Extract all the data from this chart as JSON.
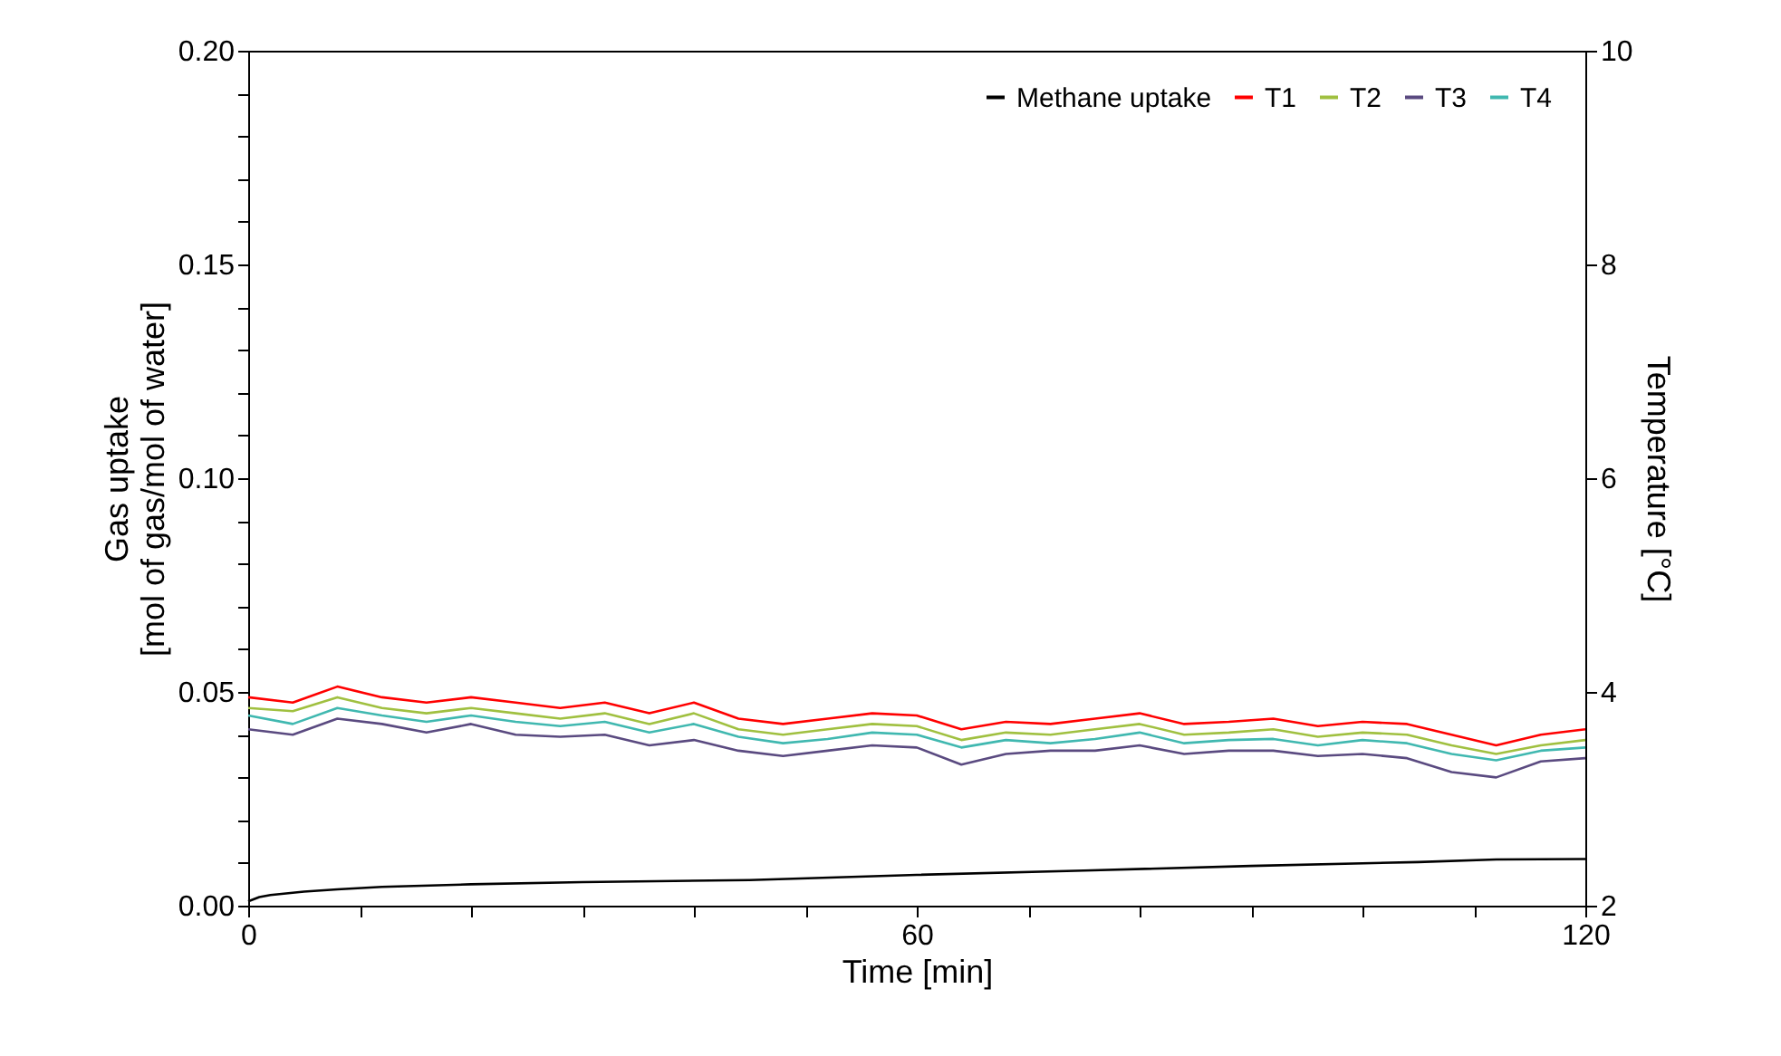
{
  "chart_data": {
    "type": "line",
    "xlabel": "Time [min]",
    "ylabel": "Gas uptake\n[mol of gas/mol of water]",
    "y2label": "Temperature [°C]",
    "x": [
      0,
      4,
      8,
      12,
      16,
      20,
      24,
      28,
      32,
      36,
      40,
      44,
      48,
      52,
      56,
      60,
      64,
      68,
      72,
      76,
      80,
      84,
      88,
      92,
      96,
      100,
      104,
      108,
      112,
      116,
      120
    ],
    "series": [
      {
        "name": "Methane uptake",
        "color": "#000000",
        "x": [
          0,
          1,
          2,
          5,
          8,
          12,
          20,
          30,
          45,
          60,
          75,
          90,
          105,
          112,
          120
        ],
        "values": [
          0.001,
          0.002,
          0.0025,
          0.0033,
          0.0038,
          0.0044,
          0.005,
          0.0055,
          0.006,
          0.0072,
          0.0082,
          0.0093,
          0.0102,
          0.0108,
          0.0109
        ]
      },
      {
        "name": "T1",
        "color": "#ff0000",
        "axis": "y2",
        "values": [
          3.95,
          3.9,
          4.05,
          3.95,
          3.9,
          3.95,
          3.9,
          3.85,
          3.9,
          3.8,
          3.9,
          3.75,
          3.7,
          3.75,
          3.8,
          3.78,
          3.65,
          3.72,
          3.7,
          3.75,
          3.8,
          3.7,
          3.72,
          3.75,
          3.68,
          3.72,
          3.7,
          3.6,
          3.5,
          3.6,
          3.65
        ]
      },
      {
        "name": "T2",
        "color": "#a0c040",
        "axis": "y2",
        "values": [
          3.85,
          3.82,
          3.95,
          3.85,
          3.8,
          3.85,
          3.8,
          3.75,
          3.8,
          3.7,
          3.8,
          3.65,
          3.6,
          3.65,
          3.7,
          3.68,
          3.55,
          3.62,
          3.6,
          3.65,
          3.7,
          3.6,
          3.62,
          3.65,
          3.58,
          3.62,
          3.6,
          3.5,
          3.42,
          3.5,
          3.55
        ]
      },
      {
        "name": "T3",
        "color": "#5a4a80",
        "axis": "y2",
        "values": [
          3.65,
          3.6,
          3.75,
          3.7,
          3.62,
          3.7,
          3.6,
          3.58,
          3.6,
          3.5,
          3.55,
          3.45,
          3.4,
          3.45,
          3.5,
          3.48,
          3.32,
          3.42,
          3.45,
          3.45,
          3.5,
          3.42,
          3.45,
          3.45,
          3.4,
          3.42,
          3.38,
          3.25,
          3.2,
          3.35,
          3.38
        ]
      },
      {
        "name": "T4",
        "color": "#40b8b0",
        "axis": "y2",
        "values": [
          3.78,
          3.7,
          3.85,
          3.78,
          3.72,
          3.78,
          3.72,
          3.68,
          3.72,
          3.62,
          3.7,
          3.58,
          3.52,
          3.56,
          3.62,
          3.6,
          3.48,
          3.55,
          3.52,
          3.56,
          3.62,
          3.52,
          3.55,
          3.56,
          3.5,
          3.55,
          3.52,
          3.42,
          3.36,
          3.45,
          3.48
        ]
      }
    ],
    "xlim": [
      0,
      120
    ],
    "xticks": [
      0,
      {
        "value": 10,
        "label": null
      },
      {
        "value": 20,
        "label": null
      },
      {
        "value": 30,
        "label": null
      },
      {
        "value": 40,
        "label": null
      },
      {
        "value": 50,
        "label": null
      },
      60,
      {
        "value": 70,
        "label": null
      },
      {
        "value": 80,
        "label": null
      },
      {
        "value": 90,
        "label": null
      },
      {
        "value": 100,
        "label": null
      },
      {
        "value": 110,
        "label": null
      },
      120
    ],
    "ylim": [
      0,
      0.2
    ],
    "yticks": [
      {
        "value": 0,
        "label": "0.00"
      },
      {
        "value": 0.01,
        "label": null
      },
      {
        "value": 0.02,
        "label": null
      },
      {
        "value": 0.03,
        "label": null
      },
      {
        "value": 0.04,
        "label": null
      },
      0.05,
      {
        "value": 0.06,
        "label": null
      },
      {
        "value": 0.07,
        "label": null
      },
      {
        "value": 0.08,
        "label": null
      },
      {
        "value": 0.09,
        "label": null
      },
      {
        "value": 0.1,
        "label": "0.10"
      },
      {
        "value": 0.11,
        "label": null
      },
      {
        "value": 0.12,
        "label": null
      },
      {
        "value": 0.13,
        "label": null
      },
      {
        "value": 0.14,
        "label": null
      },
      0.15,
      {
        "value": 0.16,
        "label": null
      },
      {
        "value": 0.17,
        "label": null
      },
      {
        "value": 0.18,
        "label": null
      },
      {
        "value": 0.19,
        "label": null
      },
      {
        "value": 0.2,
        "label": "0.20"
      }
    ],
    "y2lim": [
      2,
      10
    ],
    "y2ticks": [
      2,
      4,
      6,
      8,
      10
    ],
    "grid": false,
    "legend": "top right",
    "marker": "none",
    "line_style": "solid"
  }
}
